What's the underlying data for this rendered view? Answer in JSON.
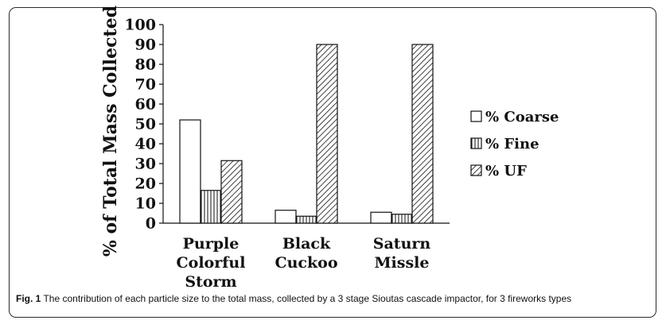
{
  "chart_data": {
    "type": "bar",
    "categories": [
      [
        "Purple",
        "Colorful",
        "Storm"
      ],
      [
        "Black",
        "Cuckoo"
      ],
      [
        "Saturn",
        "Missle"
      ]
    ],
    "series": [
      {
        "name": "% Coarse",
        "values": [
          52,
          6.5,
          5.5
        ],
        "pattern": "none"
      },
      {
        "name": "% Fine",
        "values": [
          16.5,
          3.5,
          4.5
        ],
        "pattern": "vertical"
      },
      {
        "name": "% UF",
        "values": [
          31.5,
          90,
          90
        ],
        "pattern": "diagonal"
      }
    ],
    "ylabel": "% of Total Mass Collected",
    "ylim": [
      0,
      100
    ],
    "yticks": [
      0,
      10,
      20,
      30,
      40,
      50,
      60,
      70,
      80,
      90,
      100
    ],
    "grid": false,
    "legend_position": "right"
  },
  "caption": {
    "label": "Fig. 1",
    "text": " The contribution of each particle size to the total mass, collected by a 3 stage Sioutas cascade impactor, for 3 fireworks types"
  }
}
